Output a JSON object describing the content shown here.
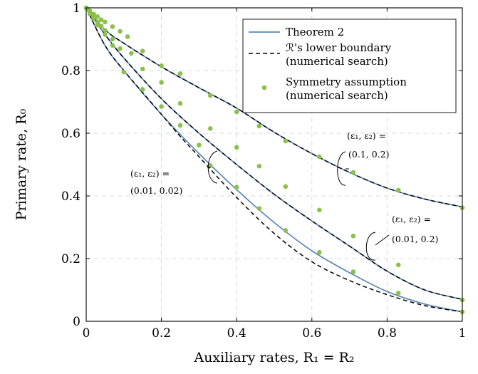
{
  "chart_data": {
    "type": "line",
    "xlabel": "Auxiliary rates, R₁ = R₂",
    "ylabel": "Primary rate, R₀",
    "xlim": [
      0,
      1
    ],
    "ylim": [
      0,
      1
    ],
    "xticks": [
      0,
      0.2,
      0.4,
      0.6,
      0.8,
      1
    ],
    "yticks": [
      0,
      0.2,
      0.4,
      0.6,
      0.8,
      1
    ],
    "xtick_labels": [
      "0",
      "0.2",
      "0.4",
      "0.6",
      "0.8",
      "1"
    ],
    "ytick_labels": [
      "0",
      "0.2",
      "0.4",
      "0.6",
      "0.8",
      "1"
    ],
    "grid": true,
    "legend_position": "top-right",
    "legend": [
      {
        "label": "Theorem 2",
        "style": "solid-line"
      },
      {
        "label": "ℛ's lower boundary",
        "label_line2": "(numerical search)",
        "style": "dashed-line"
      },
      {
        "label": "Symmetry assumption",
        "label_line2": "(numerical search)",
        "style": "marker"
      }
    ],
    "colors": {
      "theorem": "#5b87b5",
      "lower_boundary": "#000000",
      "symmetry": "#8dc04a"
    },
    "curve_groups": [
      {
        "annotation_line1": "(ε₁, ε₂) =",
        "annotation_line2": "(0.1, 0.2)",
        "theorem2": {
          "x": [
            0,
            0.05,
            0.1,
            0.2,
            0.3,
            0.4,
            0.5,
            0.6,
            0.7,
            0.8,
            0.9,
            1.0
          ],
          "y": [
            1.0,
            0.93,
            0.887,
            0.812,
            0.745,
            0.68,
            0.603,
            0.535,
            0.475,
            0.425,
            0.39,
            0.365
          ]
        },
        "lower_boundary": {
          "x": [
            0,
            0.05,
            0.1,
            0.2,
            0.3,
            0.4,
            0.5,
            0.6,
            0.7,
            0.8,
            0.9,
            1.0
          ],
          "y": [
            1.0,
            0.93,
            0.887,
            0.812,
            0.745,
            0.68,
            0.603,
            0.535,
            0.475,
            0.425,
            0.39,
            0.365
          ]
        },
        "symmetry": {
          "x": [
            0,
            0.005,
            0.01,
            0.02,
            0.03,
            0.04,
            0.05,
            0.07,
            0.09,
            0.11,
            0.15,
            0.2,
            0.25,
            0.33,
            0.4,
            0.46,
            0.53,
            0.62,
            0.71,
            0.83,
            1.0
          ],
          "y": [
            1.0,
            0.995,
            0.99,
            0.98,
            0.972,
            0.962,
            0.955,
            0.94,
            0.925,
            0.908,
            0.862,
            0.815,
            0.79,
            0.72,
            0.668,
            0.623,
            0.575,
            0.525,
            0.475,
            0.418,
            0.362
          ]
        }
      },
      {
        "annotation_line1": "(ε₁, ε₂) =",
        "annotation_line2": "(0.01, 0.2)",
        "theorem2": {
          "x": [
            0,
            0.05,
            0.1,
            0.2,
            0.3,
            0.4,
            0.5,
            0.6,
            0.7,
            0.8,
            0.9,
            1.0
          ],
          "y": [
            1.0,
            0.915,
            0.84,
            0.71,
            0.6,
            0.5,
            0.405,
            0.32,
            0.24,
            0.16,
            0.1,
            0.07
          ]
        },
        "lower_boundary": {
          "x": [
            0,
            0.05,
            0.1,
            0.2,
            0.3,
            0.4,
            0.5,
            0.6,
            0.7,
            0.8,
            0.9,
            1.0
          ],
          "y": [
            1.0,
            0.915,
            0.84,
            0.71,
            0.6,
            0.5,
            0.405,
            0.32,
            0.24,
            0.16,
            0.1,
            0.07
          ]
        },
        "symmetry": {
          "x": [
            0,
            0.01,
            0.02,
            0.03,
            0.04,
            0.05,
            0.07,
            0.09,
            0.12,
            0.15,
            0.2,
            0.25,
            0.33,
            0.4,
            0.46,
            0.53,
            0.62,
            0.71,
            0.83,
            1.0
          ],
          "y": [
            1.0,
            0.985,
            0.97,
            0.955,
            0.942,
            0.928,
            0.9,
            0.87,
            0.855,
            0.805,
            0.762,
            0.695,
            0.615,
            0.555,
            0.495,
            0.43,
            0.355,
            0.272,
            0.18,
            0.068
          ]
        }
      },
      {
        "annotation_line1": "(ε₁, ε₂) =",
        "annotation_line2": "(0.01, 0.02)",
        "theorem2": {
          "x": [
            0,
            0.05,
            0.1,
            0.2,
            0.3,
            0.4,
            0.5,
            0.6,
            0.7,
            0.8,
            0.9,
            1.0
          ],
          "y": [
            1.0,
            0.88,
            0.8,
            0.66,
            0.535,
            0.42,
            0.315,
            0.225,
            0.155,
            0.095,
            0.055,
            0.03
          ]
        },
        "lower_boundary": {
          "x": [
            0,
            0.05,
            0.1,
            0.15,
            0.2,
            0.25,
            0.3,
            0.4,
            0.5,
            0.6,
            0.7,
            0.8,
            0.9,
            1.0
          ],
          "y": [
            1.0,
            0.88,
            0.8,
            0.73,
            0.66,
            0.59,
            0.525,
            0.395,
            0.28,
            0.19,
            0.13,
            0.085,
            0.05,
            0.03
          ]
        },
        "symmetry": {
          "x": [
            0,
            0.01,
            0.02,
            0.03,
            0.05,
            0.07,
            0.1,
            0.15,
            0.2,
            0.25,
            0.3,
            0.33,
            0.4,
            0.46,
            0.53,
            0.62,
            0.71,
            0.83,
            1.0
          ],
          "y": [
            1.0,
            0.98,
            0.965,
            0.945,
            0.915,
            0.88,
            0.795,
            0.74,
            0.685,
            0.625,
            0.562,
            0.497,
            0.428,
            0.36,
            0.29,
            0.22,
            0.158,
            0.09,
            0.03
          ]
        }
      }
    ]
  }
}
